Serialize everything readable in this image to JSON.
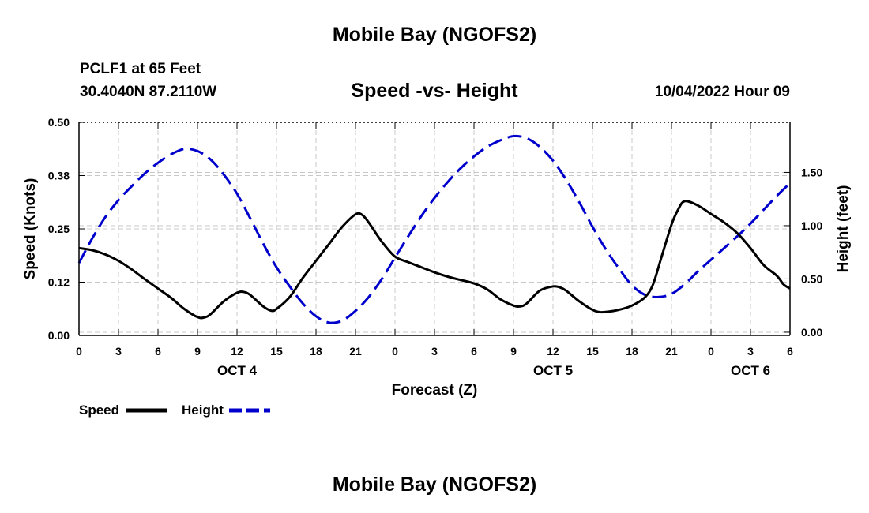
{
  "header": {
    "title": "Mobile Bay (NGOFS2)",
    "station": "PCLF1 at 65 Feet",
    "coordinates": "30.4040N  87.2110W",
    "subtitle": "Speed -vs- Height",
    "datetime": "10/04/2022 Hour 09"
  },
  "footer": {
    "title": "Mobile Bay (NGOFS2)"
  },
  "chart_data": {
    "type": "line",
    "xlabel": "Forecast (Z)",
    "ylabel_left": "Speed (Knots)",
    "ylabel_right": "Height (feet)",
    "x_hours": [
      0,
      3,
      6,
      9,
      12,
      15,
      18,
      21,
      24,
      27,
      30,
      33,
      36,
      39,
      42,
      45,
      48,
      51,
      54
    ],
    "x_tick_labels": [
      "0",
      "3",
      "6",
      "9",
      "12",
      "15",
      "18",
      "21",
      "0",
      "3",
      "6",
      "9",
      "12",
      "15",
      "18",
      "21",
      "0",
      "3",
      "6"
    ],
    "date_labels": [
      {
        "label": "OCT 4",
        "hour": 12
      },
      {
        "label": "OCT 5",
        "hour": 36
      },
      {
        "label": "OCT 6",
        "hour": 51
      }
    ],
    "xlim": [
      0,
      54
    ],
    "ylim_left": [
      0,
      0.5
    ],
    "ylim_right": [
      -0.03,
      1.97
    ],
    "y_left_ticks": [
      "0.00",
      "0.12",
      "0.25",
      "0.38",
      "0.50"
    ],
    "y_left_tick_values": [
      0,
      0.125,
      0.25,
      0.375,
      0.5
    ],
    "y_right_ticks": [
      "0.00",
      "0.50",
      "1.00",
      "1.50"
    ],
    "y_right_tick_values": [
      0,
      0.5,
      1.0,
      1.5
    ],
    "grid": true,
    "legend_position": "bottom-left",
    "series": [
      {
        "name": "Speed",
        "axis": "left",
        "color": "#000000",
        "style": "solid",
        "points": [
          [
            0,
            0.205
          ],
          [
            1,
            0.2
          ],
          [
            2,
            0.19
          ],
          [
            3,
            0.175
          ],
          [
            4,
            0.155
          ],
          [
            5,
            0.132
          ],
          [
            6,
            0.11
          ],
          [
            7,
            0.088
          ],
          [
            8,
            0.062
          ],
          [
            9,
            0.043
          ],
          [
            9.5,
            0.042
          ],
          [
            10,
            0.05
          ],
          [
            11,
            0.08
          ],
          [
            12,
            0.1
          ],
          [
            12.5,
            0.102
          ],
          [
            13,
            0.095
          ],
          [
            14,
            0.068
          ],
          [
            14.6,
            0.058
          ],
          [
            15,
            0.062
          ],
          [
            16,
            0.09
          ],
          [
            17,
            0.135
          ],
          [
            18,
            0.175
          ],
          [
            19,
            0.215
          ],
          [
            20,
            0.255
          ],
          [
            21,
            0.284
          ],
          [
            21.5,
            0.283
          ],
          [
            22,
            0.265
          ],
          [
            23,
            0.22
          ],
          [
            24,
            0.185
          ],
          [
            25,
            0.172
          ],
          [
            26,
            0.16
          ],
          [
            27,
            0.148
          ],
          [
            28,
            0.138
          ],
          [
            29,
            0.13
          ],
          [
            30,
            0.122
          ],
          [
            31,
            0.108
          ],
          [
            32,
            0.085
          ],
          [
            33,
            0.07
          ],
          [
            33.5,
            0.068
          ],
          [
            34,
            0.075
          ],
          [
            35,
            0.105
          ],
          [
            36,
            0.115
          ],
          [
            36.5,
            0.113
          ],
          [
            37,
            0.105
          ],
          [
            38,
            0.08
          ],
          [
            39,
            0.06
          ],
          [
            39.5,
            0.055
          ],
          [
            40,
            0.055
          ],
          [
            41,
            0.06
          ],
          [
            42,
            0.07
          ],
          [
            43,
            0.09
          ],
          [
            43.6,
            0.12
          ],
          [
            44.2,
            0.18
          ],
          [
            45,
            0.26
          ],
          [
            45.5,
            0.295
          ],
          [
            46,
            0.315
          ],
          [
            47,
            0.305
          ],
          [
            48,
            0.285
          ],
          [
            49,
            0.265
          ],
          [
            50,
            0.24
          ],
          [
            51,
            0.205
          ],
          [
            52,
            0.165
          ],
          [
            53,
            0.14
          ],
          [
            53.5,
            0.12
          ],
          [
            54,
            0.11
          ]
        ]
      },
      {
        "name": "Height",
        "axis": "right",
        "color": "#0000cc",
        "style": "dashed",
        "points": [
          [
            0,
            0.65
          ],
          [
            1,
            0.88
          ],
          [
            2,
            1.08
          ],
          [
            3,
            1.24
          ],
          [
            4,
            1.37
          ],
          [
            5,
            1.49
          ],
          [
            6,
            1.59
          ],
          [
            7,
            1.67
          ],
          [
            8,
            1.72
          ],
          [
            9,
            1.7
          ],
          [
            10,
            1.62
          ],
          [
            11,
            1.48
          ],
          [
            12,
            1.3
          ],
          [
            13,
            1.07
          ],
          [
            14,
            0.83
          ],
          [
            15,
            0.61
          ],
          [
            16,
            0.43
          ],
          [
            17,
            0.27
          ],
          [
            18,
            0.15
          ],
          [
            19,
            0.09
          ],
          [
            20,
            0.11
          ],
          [
            21,
            0.2
          ],
          [
            22,
            0.33
          ],
          [
            23,
            0.5
          ],
          [
            24,
            0.7
          ],
          [
            25,
            0.9
          ],
          [
            26,
            1.09
          ],
          [
            27,
            1.26
          ],
          [
            28,
            1.41
          ],
          [
            29,
            1.54
          ],
          [
            30,
            1.65
          ],
          [
            31,
            1.74
          ],
          [
            32,
            1.8
          ],
          [
            33,
            1.84
          ],
          [
            34,
            1.82
          ],
          [
            35,
            1.74
          ],
          [
            36,
            1.61
          ],
          [
            37,
            1.43
          ],
          [
            38,
            1.22
          ],
          [
            39,
            0.99
          ],
          [
            40,
            0.78
          ],
          [
            41,
            0.6
          ],
          [
            42,
            0.44
          ],
          [
            43,
            0.35
          ],
          [
            44,
            0.33
          ],
          [
            45,
            0.36
          ],
          [
            46,
            0.45
          ],
          [
            47,
            0.57
          ],
          [
            48,
            0.68
          ],
          [
            49,
            0.79
          ],
          [
            50,
            0.9
          ],
          [
            51,
            1.02
          ],
          [
            52,
            1.15
          ],
          [
            53,
            1.28
          ],
          [
            54,
            1.4
          ]
        ]
      }
    ]
  }
}
